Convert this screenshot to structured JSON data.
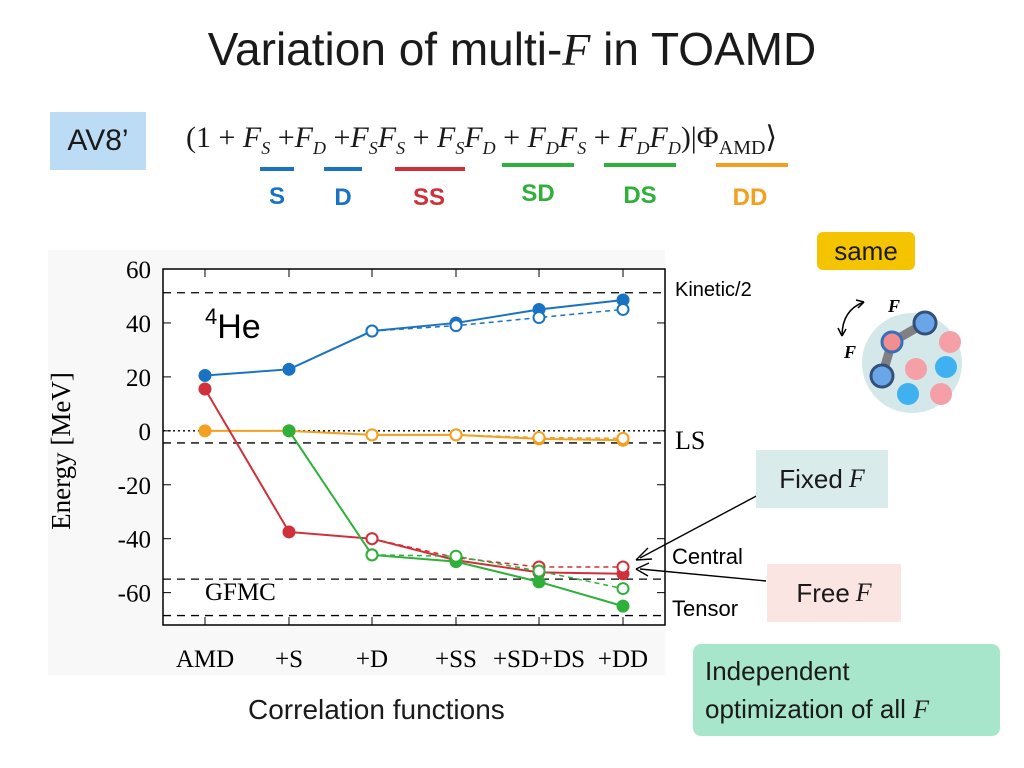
{
  "title": {
    "prefix": "Variation of multi-",
    "symbol": "F",
    "suffix": " in TOAMD"
  },
  "model_label": "AV8’",
  "formula": {
    "parts": [
      "(1 + ",
      "F",
      "S",
      " +",
      "F",
      "D",
      " +",
      "F",
      "S",
      "F",
      "S",
      " + ",
      "F",
      "S",
      "F",
      "D",
      " + ",
      "F",
      "D",
      "F",
      "S",
      " + ",
      "F",
      "D",
      "F",
      "D",
      ")|Φ",
      "AMD",
      "⟩"
    ]
  },
  "terms": [
    {
      "label": "S",
      "color": "#1a73c2"
    },
    {
      "label": "D",
      "color": "#1a73c2"
    },
    {
      "label": "SS",
      "color": "#d0303a"
    },
    {
      "label": "SD",
      "color": "#2eb03a"
    },
    {
      "label": "DS",
      "color": "#2eb03a"
    },
    {
      "label": "DD",
      "color": "#f3a020"
    }
  ],
  "badge_same": "same",
  "callout_fixed": {
    "text": "Fixed",
    "symbol": "F"
  },
  "callout_free": {
    "text": "Free",
    "symbol": "F"
  },
  "callout_independent": {
    "line1": "Independent",
    "line2": "optimization of all",
    "symbol": "F"
  },
  "cluster_labels": [
    "F",
    "F"
  ],
  "chart_data": {
    "type": "line",
    "nucleus_label": {
      "superscript": "4",
      "text": "He"
    },
    "ylabel": "Energy [MeV]",
    "xlabel": "Correlation functions",
    "ylim": [
      -72,
      60
    ],
    "yticks": [
      60,
      40,
      20,
      0,
      -20,
      -40,
      -60
    ],
    "categories": [
      "AMD",
      "+S",
      "+D",
      "+SS",
      "+SD+DS",
      "+DD"
    ],
    "reference_lines": [
      {
        "value": 51.2,
        "label": "Kinetic/2"
      },
      {
        "value": -4.5,
        "label": "LS"
      },
      {
        "value": -55,
        "label": "Central"
      },
      {
        "value": -68.5,
        "label": "Tensor"
      },
      {
        "value": 0,
        "label": ""
      }
    ],
    "gfmc_label": "GFMC",
    "series": [
      {
        "color": "#1a73c2",
        "style": "solid",
        "marker": "filled",
        "values": [
          20.5,
          22.8,
          37,
          40,
          45,
          48.5
        ]
      },
      {
        "color": "#1a73c2",
        "style": "dashed",
        "marker": "open",
        "values": [
          null,
          null,
          37,
          39,
          42,
          45
        ]
      },
      {
        "color": "#f3a020",
        "style": "solid",
        "marker": "filled",
        "values": [
          0,
          0,
          -1.5,
          -1.5,
          -3,
          -3.5
        ]
      },
      {
        "color": "#f3a020",
        "style": "dashed",
        "marker": "open",
        "values": [
          null,
          0,
          -1.5,
          -1.5,
          -2.5,
          -2.8
        ]
      },
      {
        "color": "#d0303a",
        "style": "solid",
        "marker": "filled",
        "values": [
          15.5,
          -37.5,
          -40,
          -48,
          -52.5,
          -53
        ]
      },
      {
        "color": "#d0303a",
        "style": "dashed",
        "marker": "open",
        "values": [
          null,
          null,
          -40,
          -47,
          -50.5,
          -50.5
        ]
      },
      {
        "color": "#2eb03a",
        "style": "solid",
        "marker": "filled",
        "values": [
          null,
          0,
          -46,
          -48.5,
          -56,
          -65
        ]
      },
      {
        "color": "#2eb03a",
        "style": "dashed",
        "marker": "open",
        "values": [
          null,
          null,
          -46,
          -46.5,
          -52,
          -58.5
        ]
      }
    ]
  }
}
